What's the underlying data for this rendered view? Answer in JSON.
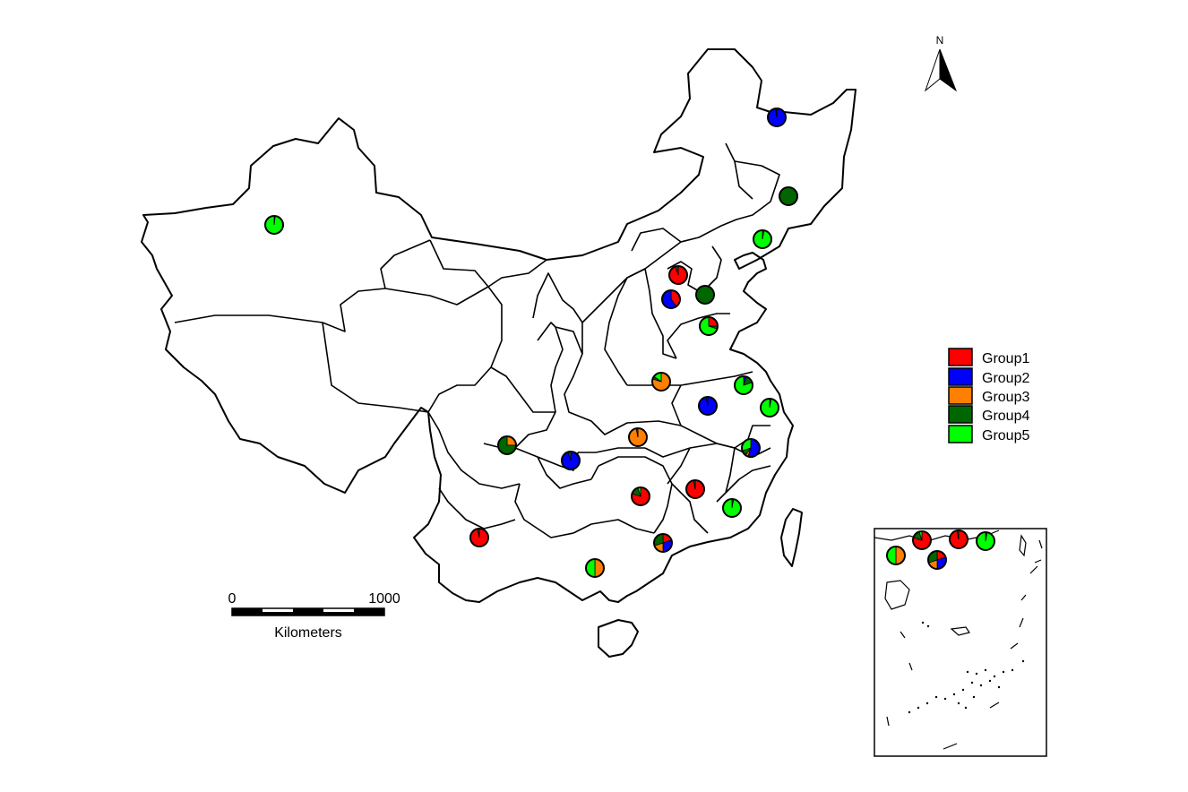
{
  "north_arrow": {
    "label": "N"
  },
  "legend": {
    "items": [
      {
        "label": "Group1",
        "color": "#ff0000"
      },
      {
        "label": "Group2",
        "color": "#0000ff"
      },
      {
        "label": "Group3",
        "color": "#ff8000"
      },
      {
        "label": "Group4",
        "color": "#006600"
      },
      {
        "label": "Group5",
        "color": "#00ff00"
      }
    ]
  },
  "scale_bar": {
    "start_label": "0",
    "end_label": "1000",
    "unit_label": "Kilometers"
  },
  "sites": [
    {
      "id": "xinjiang",
      "shares": [
        0,
        0,
        0,
        0.02,
        0.98
      ]
    },
    {
      "id": "heilongjiang",
      "shares": [
        0,
        0.98,
        0,
        0.02,
        0
      ]
    },
    {
      "id": "jilin",
      "shares": [
        0,
        0,
        0,
        1,
        0
      ]
    },
    {
      "id": "liaoning",
      "shares": [
        0,
        0,
        0,
        0.03,
        0.97
      ]
    },
    {
      "id": "beijing",
      "shares": [
        0.95,
        0,
        0,
        0.05,
        0
      ]
    },
    {
      "id": "shanxi",
      "shares": [
        0.4,
        0.6,
        0,
        0,
        0
      ]
    },
    {
      "id": "tianjin",
      "shares": [
        0,
        0,
        0,
        1,
        0
      ]
    },
    {
      "id": "shandong",
      "shares": [
        0.25,
        0,
        0,
        0.05,
        0.7
      ]
    },
    {
      "id": "henan",
      "shares": [
        0,
        0,
        0.8,
        0.05,
        0.15
      ]
    },
    {
      "id": "jiangsu",
      "shares": [
        0,
        0.05,
        0,
        0.15,
        0.8
      ]
    },
    {
      "id": "anhui",
      "shares": [
        0,
        0.97,
        0,
        0.03,
        0
      ]
    },
    {
      "id": "shanghai",
      "shares": [
        0,
        0,
        0,
        0.03,
        0.97
      ]
    },
    {
      "id": "zhejiang",
      "shares": [
        0,
        0.55,
        0.05,
        0.1,
        0.3
      ]
    },
    {
      "id": "hubei",
      "shares": [
        0,
        0,
        0.97,
        0.03,
        0
      ]
    },
    {
      "id": "sichuan",
      "shares": [
        0,
        0,
        0.25,
        0.75,
        0
      ]
    },
    {
      "id": "chongqing",
      "shares": [
        0,
        0.95,
        0,
        0.05,
        0
      ]
    },
    {
      "id": "hunan",
      "shares": [
        0.8,
        0,
        0,
        0.15,
        0.05
      ]
    },
    {
      "id": "jiangxi",
      "shares": [
        0.97,
        0,
        0,
        0.03,
        0
      ]
    },
    {
      "id": "fujian",
      "shares": [
        0,
        0,
        0,
        0.03,
        0.97
      ]
    },
    {
      "id": "yunnan",
      "shares": [
        0.97,
        0,
        0,
        0.03,
        0
      ]
    },
    {
      "id": "guangxi",
      "shares": [
        0,
        0,
        0.5,
        0,
        0.5
      ]
    },
    {
      "id": "guangdong",
      "shares": [
        0.2,
        0.3,
        0.2,
        0.3,
        0
      ]
    },
    {
      "id": "inset-hunan",
      "shares": [
        0.8,
        0,
        0,
        0.15,
        0.05
      ]
    },
    {
      "id": "inset-jiangxi",
      "shares": [
        0.97,
        0,
        0,
        0.03,
        0
      ]
    },
    {
      "id": "inset-fujian",
      "shares": [
        0,
        0,
        0,
        0.03,
        0.97
      ]
    },
    {
      "id": "inset-guangxi",
      "shares": [
        0,
        0,
        0.5,
        0,
        0.5
      ]
    },
    {
      "id": "inset-guangdong",
      "shares": [
        0.2,
        0.3,
        0.2,
        0.3,
        0
      ]
    }
  ]
}
